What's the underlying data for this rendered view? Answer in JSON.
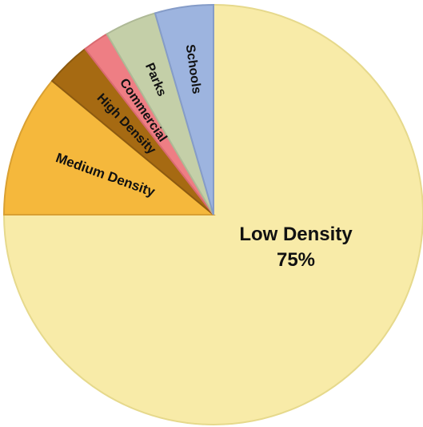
{
  "chart_data": {
    "type": "pie",
    "slices": [
      {
        "label": "Low Density",
        "value_label": "75%",
        "value": 75,
        "color": "#F8EBA8",
        "stroke": "#E6D98C"
      },
      {
        "label": "Medium Density",
        "value": 11,
        "color": "#F5B83C",
        "stroke": "#D9A032"
      },
      {
        "label": "High Density",
        "value": 3.5,
        "color": "#A66A12",
        "stroke": "#8C5A10"
      },
      {
        "label": "Commercial",
        "value": 2,
        "color": "#EE7E84",
        "stroke": "#D96A70"
      },
      {
        "label": "Parks",
        "value": 4,
        "color": "#C4CFA8",
        "stroke": "#AEB996"
      },
      {
        "label": "Schools",
        "value": 4.5,
        "color": "#9DB4DF",
        "stroke": "#859CC8"
      }
    ],
    "start": "12 o'clock",
    "direction": "counterclockwise",
    "legend": "none"
  }
}
